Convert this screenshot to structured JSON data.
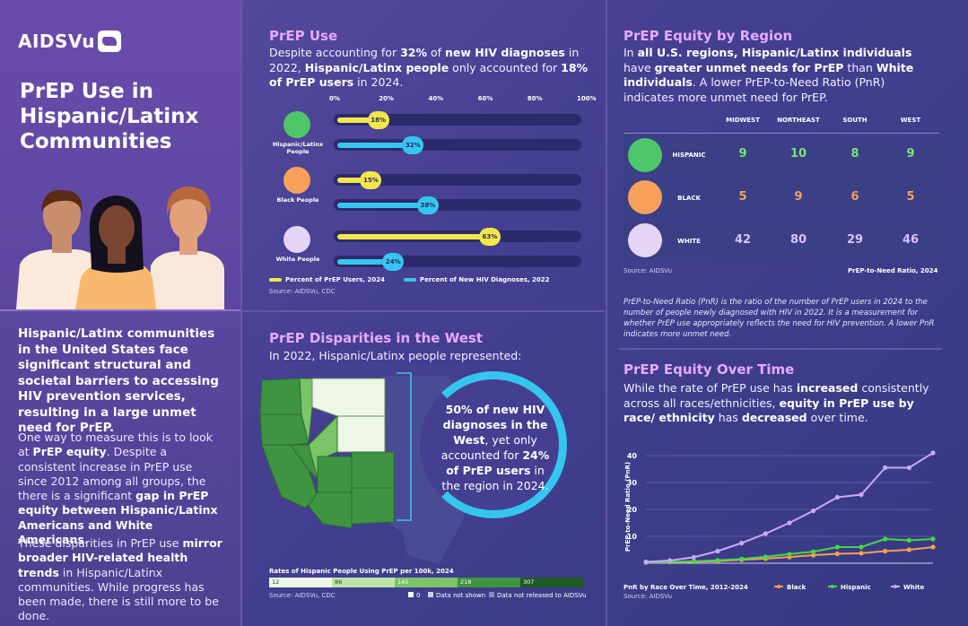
{
  "brand": "AIDSVu",
  "main_title": "PrEP Use in Hispanic/Latinx Communities",
  "left": {
    "lead": "Hispanic/Latinx communities in the United States face significant structural and societal barriers to accessing HIV prevention services, resulting in a large unmet need for PrEP.",
    "p1_parts": [
      "One way to measure this is to look at ",
      "PrEP equity",
      ". Despite a consistent increase in PrEP use since 2012 among all groups, the there is a significant ",
      "gap in PrEP equity between Hispanic/Latinx Americans and White Americans",
      "."
    ],
    "p2_parts": [
      "These disparities in PrEP use ",
      "mirror broader HIV-related health trends",
      " in Hispanic/Latinx communities. While progress has been made, there is still more to be done."
    ]
  },
  "prep_use": {
    "title": "PrEP Use",
    "desc_parts": [
      "Despite accounting for ",
      "32%",
      " of ",
      "new HIV diagnoses",
      " in 2022, ",
      "Hispanic/Latinx people",
      " only accounted for ",
      "18% of PrEP users",
      " in 2024."
    ],
    "groups": [
      "Hispanic/Latinx People",
      "Black People",
      "White People"
    ],
    "legend": [
      "Percent of PrEP Users, 2024",
      "Percent of New HIV Diagnoses, 2022"
    ],
    "source": "Source: AIDSVu, CDC"
  },
  "chart_data": [
    {
      "type": "bar",
      "orientation": "horizontal",
      "categories": [
        "Hispanic/Latinx People",
        "Black People",
        "White People"
      ],
      "series": [
        {
          "name": "Percent of PrEP Users, 2024",
          "values": [
            18,
            15,
            63
          ],
          "color": "#f2e64a",
          "labels": [
            "18%",
            "15%",
            "63%"
          ]
        },
        {
          "name": "Percent of New HIV Diagnoses, 2022",
          "values": [
            32,
            38,
            24
          ],
          "color": "#35c6f0",
          "labels": [
            "32%",
            "38%",
            "24%"
          ]
        }
      ],
      "xlim": [
        0,
        100
      ],
      "xticks": [
        "0%",
        "20%",
        "40%",
        "60%",
        "80%",
        "100%"
      ]
    },
    {
      "type": "table",
      "title": "PrEP Equity by Region",
      "columns": [
        "MIDWEST",
        "NORTHEAST",
        "SOUTH",
        "WEST"
      ],
      "rows": [
        {
          "label": "HISPANIC",
          "values": [
            9,
            10,
            8,
            9
          ],
          "color": "#7fe07a"
        },
        {
          "label": "BLACK",
          "values": [
            5,
            9,
            6,
            5
          ],
          "color": "#f6a05b"
        },
        {
          "label": "WHITE",
          "values": [
            42,
            80,
            29,
            46
          ],
          "color": "#d6c2ff"
        }
      ],
      "source": "Source: AIDSVu",
      "caption": "PrEP-to-Need Ratio, 2024"
    },
    {
      "type": "line",
      "title": "PnR by Race Over Time, 2012-2024",
      "ylabel": "PrEP-to-Need Ratio (PnR)",
      "ylim": [
        0,
        45
      ],
      "yticks": [
        10,
        20,
        30,
        40
      ],
      "x": [
        2012,
        2013,
        2014,
        2015,
        2016,
        2017,
        2018,
        2019,
        2020,
        2021,
        2022,
        2023,
        2024
      ],
      "series": [
        {
          "name": "Black",
          "color": "#f5a04c",
          "values": [
            0.3,
            0.4,
            0.5,
            0.8,
            1.3,
            1.7,
            2.3,
            3.0,
            3.5,
            3.7,
            4.5,
            5.0,
            6.0
          ]
        },
        {
          "name": "Hispanic",
          "color": "#47d64a",
          "values": [
            0.3,
            0.5,
            0.7,
            1.1,
            1.6,
            2.4,
            3.4,
            4.3,
            6.0,
            6.0,
            9.0,
            8.5,
            9.0
          ]
        },
        {
          "name": "White",
          "color": "#c7a9f7",
          "values": [
            0.5,
            1.0,
            2.2,
            4.5,
            7.5,
            11.0,
            15.0,
            19.5,
            24.5,
            25.5,
            35.5,
            35.5,
            41.0
          ]
        }
      ],
      "source": "Source: AIDSVu"
    }
  ],
  "region": {
    "title": "PrEP Equity by Region",
    "desc_parts": [
      "In ",
      "all U.S. regions, Hispanic/Latinx individuals",
      " have ",
      "greater unmet needs for PrEP",
      " than ",
      "White individuals",
      ". A lower PrEP-to-Need Ratio (PnR) indicates more unmet need for PrEP."
    ],
    "note": "PrEP-to-Need Ratio (PnR) is the ratio of the number of PrEP users in 2024 to the number of people newly diagnosed with HIV in 2022. It is a measurement for whether PrEP use appropriately reflects the need for HIV prevention. A lower PnR indicates more unmet need."
  },
  "west": {
    "title": "PrEP Disparities in the West",
    "desc": "In 2022, Hispanic/Latinx people represented:",
    "callout_parts": [
      "50% of new HIV diagnoses in the West",
      ", yet only accounted for ",
      "24% of PrEP users",
      " in the region in 2024."
    ],
    "legend_title": "Rates of Hispanic People Using PrEP per 100k, 2024",
    "legend_bins": [
      "12",
      "86",
      "145",
      "218",
      "307"
    ],
    "legend_colors": [
      "#eef7e6",
      "#bde4a8",
      "#7bc467",
      "#3e9440",
      "#1d5a24"
    ],
    "legend_extras": [
      "0",
      "Data not shown",
      "Data not released to AIDSVu"
    ],
    "source": "Source: AIDSVu, CDC"
  },
  "time": {
    "title": "PrEP Equity Over Time",
    "desc_parts": [
      "While the rate of PrEP use has ",
      "increased",
      " consistently across all races/ethnicities, ",
      "equity in PrEP use by race/ ethnicity",
      " has ",
      "decreased",
      " over time."
    ],
    "legend": [
      "Black",
      "Hispanic",
      "White"
    ]
  }
}
